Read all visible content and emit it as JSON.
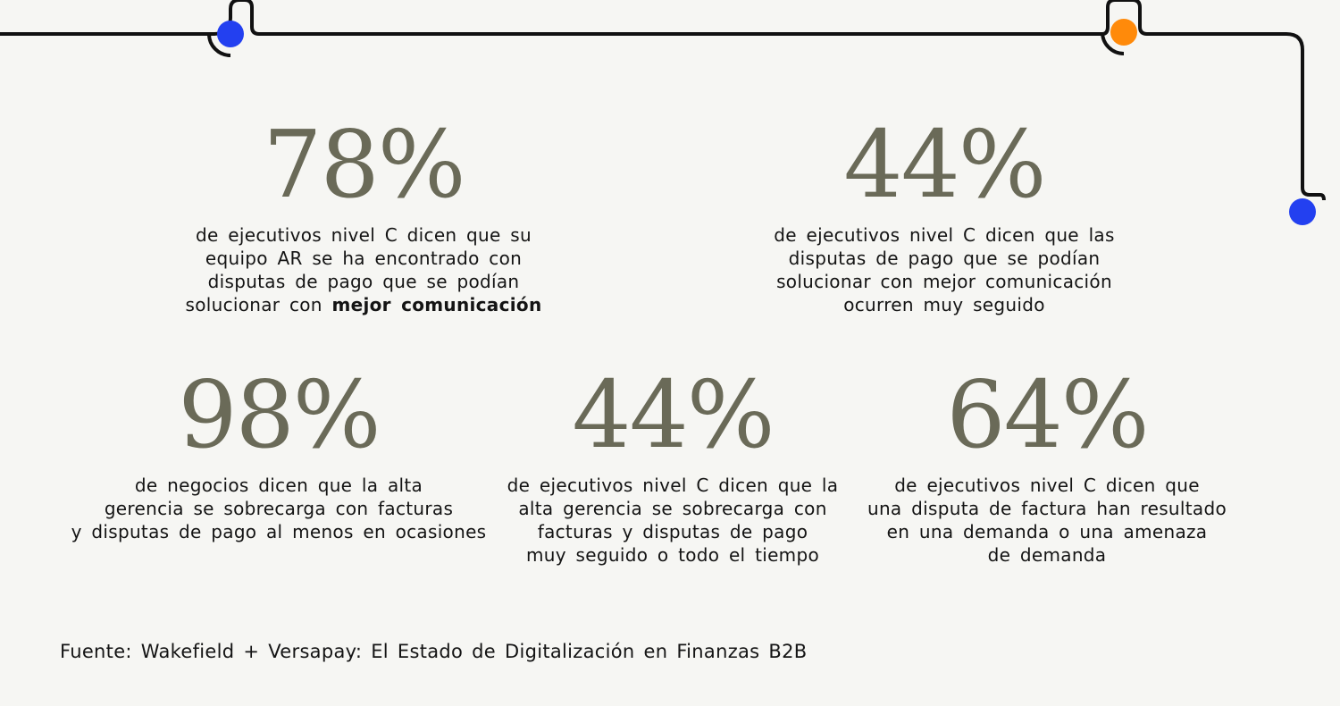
{
  "stats": [
    {
      "value": "78%",
      "lines": [
        "de ejecutivos nivel C dicen que su",
        "equipo AR se ha encontrado con",
        "disputas de pago que se podían"
      ],
      "last_plain": "solucionar con ",
      "last_bold": "mejor comunicación"
    },
    {
      "value": "44%",
      "lines": [
        "de ejecutivos nivel C dicen que las",
        "disputas de pago que se podían",
        "solucionar con mejor comunicación",
        "ocurren muy seguido"
      ]
    },
    {
      "value": "98%",
      "lines": [
        "de negocios dicen que la alta",
        "gerencia se sobrecarga con facturas",
        "y disputas de pago al menos en ocasiones"
      ]
    },
    {
      "value": "44%",
      "lines": [
        "de ejecutivos nivel C dicen que la",
        "alta gerencia se sobrecarga con",
        "facturas y disputas de pago",
        "muy seguido o todo el tiempo"
      ]
    },
    {
      "value": "64%",
      "lines": [
        "de ejecutivos nivel C dicen que",
        "una disputa de factura han resultado",
        "en una demanda o una amenaza",
        "de demanda"
      ]
    }
  ],
  "source": "Fuente: Wakefield + Versapay: El Estado de Digitalización en Finanzas B2B",
  "colors": {
    "accent_blue": "#2340f0",
    "accent_orange": "#ff8a0a",
    "stat_color": "#6a6a58",
    "background": "#f6f6f3"
  }
}
